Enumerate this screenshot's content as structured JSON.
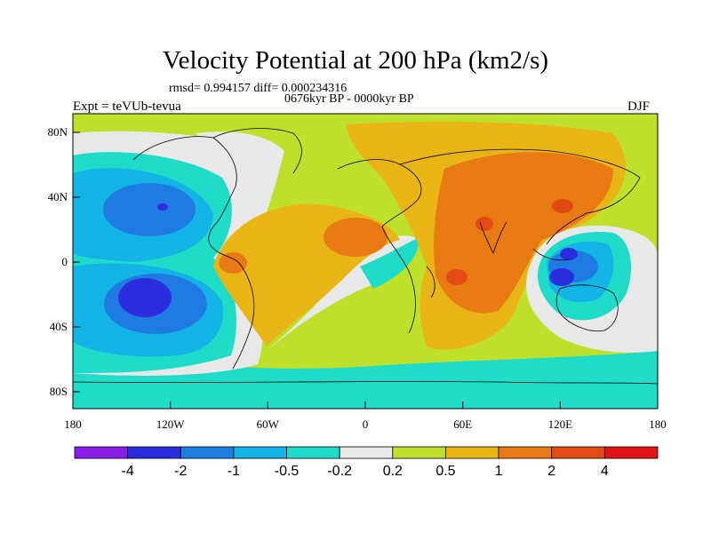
{
  "title": "Velocity Potential at 200 hPa (km2/s)",
  "stats": "rmsd= 0.994157 diff= 0.000234316",
  "period": "0676kyr BP - 0000kyr BP",
  "experiment": "Expt = teVUb-tevua",
  "season": "DJF",
  "map": {
    "lon_ticks": [
      "180",
      "120W",
      "60W",
      "0",
      "60E",
      "120E",
      "180"
    ],
    "lat_ticks": [
      "80N",
      "40N",
      "0",
      "40S",
      "80S"
    ]
  },
  "colorbar": {
    "colors": [
      "#8a1ee8",
      "#2d2de0",
      "#1f7be0",
      "#12b4e6",
      "#1fdcc8",
      "#e8e8e8",
      "#bfe02a",
      "#e8b514",
      "#e87a14",
      "#e34a14",
      "#e01414"
    ],
    "labels": [
      "-4",
      "-2",
      "-1",
      "-0.5",
      "-0.2",
      "0.2",
      "0.5",
      "1",
      "2",
      "4"
    ]
  }
}
